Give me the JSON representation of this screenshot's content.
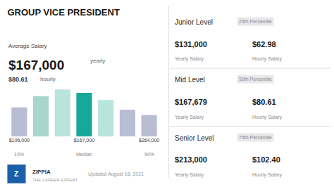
{
  "chart_data": {
    "type": "bar",
    "title": "GROUP VICE PRESIDENT",
    "categories": [
      "$106,000",
      null,
      null,
      "$167,000",
      null,
      null,
      "$264,000"
    ],
    "values": [
      0.52,
      0.72,
      0.84,
      0.78,
      0.65,
      0.48,
      0.38
    ],
    "colors": [
      "#b8bdd4",
      "#a8d5cc",
      "#b8e4dc",
      "#17a89a",
      "#b8e4dc",
      "#b8bdd4",
      "#b8bdd4"
    ],
    "ylim": [
      0,
      1.0
    ],
    "tick_labels": "x",
    "grid": false,
    "annotations": [
      "Average Salary",
      "$167,000",
      "yearly",
      "$80.61",
      "hourly",
      "Junior Level",
      "25th Percentile",
      "$131,000",
      "$62.98",
      "Yearly Salary",
      "Hourly Salary",
      "Mid Level",
      "50th Percentile",
      "$167,679",
      "$80.61",
      "Yearly Salary",
      "Hourly Salary",
      "Senior Level",
      "75th Percentile",
      "$213,000",
      "$102.40",
      "Yearly Salary",
      "Hourly Salary",
      "Z",
      "ZIPPIA",
      "THE CAREER EXPERT",
      "Updated August 18, 2021",
      "10%",
      "Median",
      "90%"
    ]
  }
}
